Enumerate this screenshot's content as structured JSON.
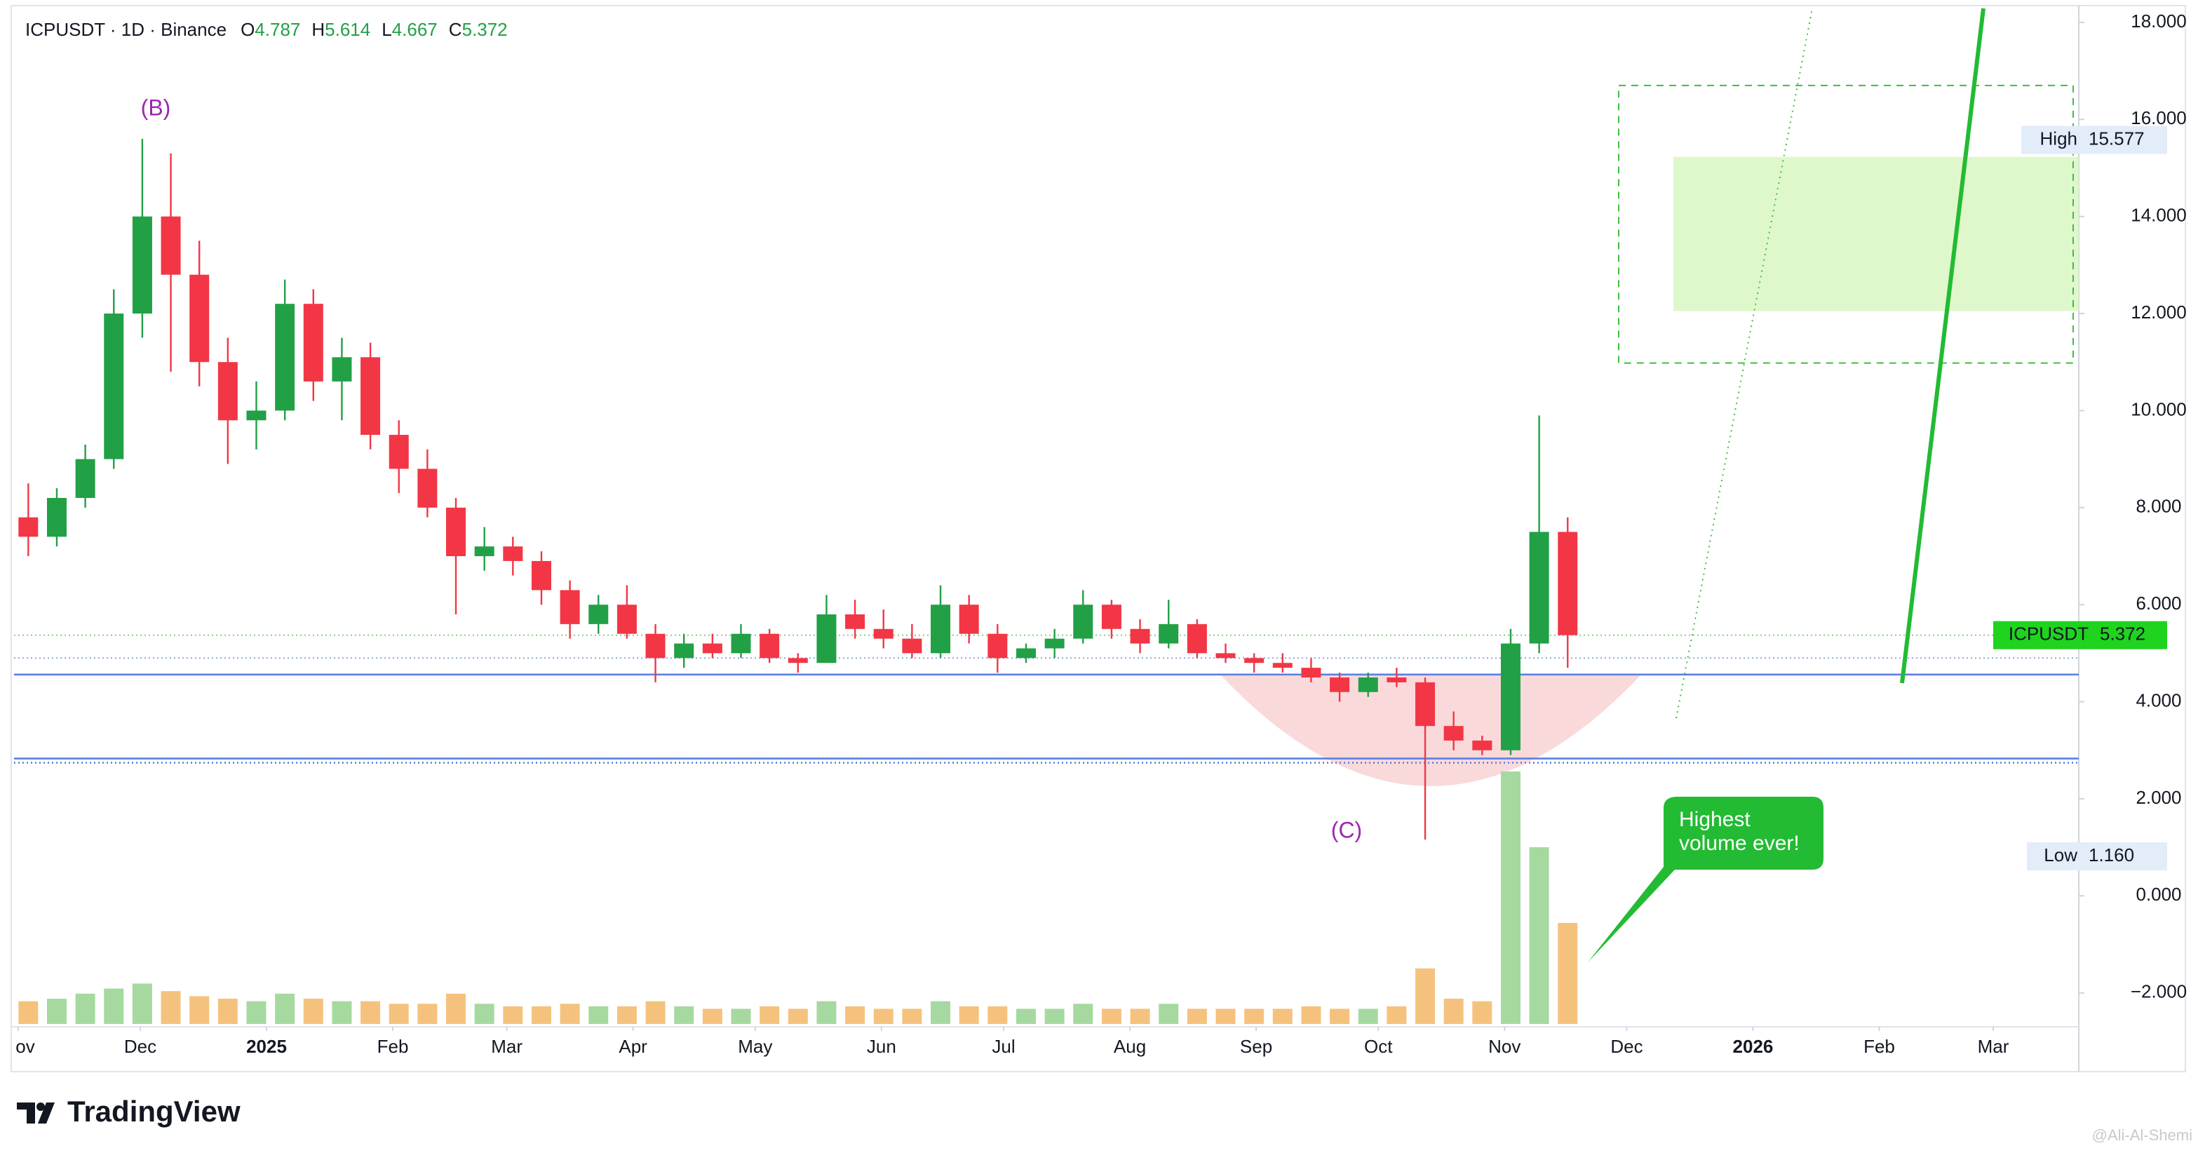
{
  "chart_data": {
    "type": "candlestick",
    "title": "ICPUSDT · 1D · Binance",
    "header": [
      {
        "key": "O",
        "value": 4.787
      },
      {
        "key": "H",
        "value": 5.614
      },
      {
        "key": "L",
        "value": 4.667
      },
      {
        "key": "C",
        "value": 5.372
      }
    ],
    "x": [
      0,
      7,
      14,
      21,
      28,
      35,
      42,
      49,
      56,
      63,
      70,
      77,
      84,
      91,
      98,
      105,
      112,
      119,
      126,
      133,
      140,
      147,
      154,
      161,
      168,
      175,
      182,
      189,
      196,
      203,
      210,
      217,
      224,
      231,
      238,
      245,
      252,
      259,
      266,
      273,
      280,
      287,
      294,
      301,
      308,
      315,
      322,
      329,
      336,
      343,
      350,
      357,
      364,
      371,
      378
    ],
    "open": [
      7.8,
      7.4,
      8.2,
      9.0,
      12.0,
      14.0,
      12.8,
      11.0,
      9.8,
      10.0,
      12.2,
      10.6,
      11.1,
      9.5,
      8.8,
      8.0,
      7.0,
      7.2,
      6.9,
      6.3,
      5.6,
      6.0,
      5.4,
      4.9,
      5.2,
      5.0,
      5.4,
      4.9,
      4.8,
      5.8,
      5.5,
      5.3,
      5.0,
      6.0,
      5.4,
      4.9,
      5.1,
      5.3,
      6.0,
      5.5,
      5.2,
      5.6,
      5.0,
      4.9,
      4.8,
      4.7,
      4.5,
      4.2,
      4.5,
      4.4,
      3.5,
      3.2,
      3.0,
      5.2,
      7.5
    ],
    "high": [
      8.5,
      8.4,
      9.3,
      12.5,
      15.6,
      15.3,
      13.5,
      11.5,
      10.6,
      12.7,
      12.5,
      11.5,
      11.4,
      9.8,
      9.2,
      8.2,
      7.6,
      7.4,
      7.1,
      6.5,
      6.2,
      6.4,
      5.6,
      5.4,
      5.4,
      5.6,
      5.5,
      5.0,
      6.2,
      6.1,
      5.9,
      5.6,
      6.4,
      6.2,
      5.6,
      5.2,
      5.5,
      6.3,
      6.1,
      5.7,
      6.1,
      5.7,
      5.2,
      5.0,
      5.0,
      4.9,
      4.6,
      4.6,
      4.7,
      4.5,
      3.8,
      3.3,
      5.5,
      9.9,
      7.8
    ],
    "low": [
      7.0,
      7.2,
      8.0,
      8.8,
      11.5,
      10.8,
      10.5,
      8.9,
      9.2,
      9.8,
      10.2,
      9.8,
      9.2,
      8.3,
      7.8,
      5.8,
      6.7,
      6.6,
      6.0,
      5.3,
      5.4,
      5.3,
      4.4,
      4.7,
      4.9,
      4.9,
      4.8,
      4.6,
      4.8,
      5.3,
      5.1,
      4.9,
      4.9,
      5.2,
      4.6,
      4.8,
      4.9,
      5.2,
      5.3,
      5.0,
      5.1,
      4.9,
      4.8,
      4.6,
      4.6,
      4.4,
      4.0,
      4.1,
      4.3,
      1.16,
      3.0,
      2.9,
      2.9,
      5.0,
      4.7
    ],
    "close": [
      7.4,
      8.2,
      9.0,
      12.0,
      14.0,
      12.8,
      11.0,
      9.8,
      10.0,
      12.2,
      10.6,
      11.1,
      9.5,
      8.8,
      8.0,
      7.0,
      7.2,
      6.9,
      6.3,
      5.6,
      6.0,
      5.4,
      4.9,
      5.2,
      5.0,
      5.4,
      4.9,
      4.8,
      5.8,
      5.5,
      5.3,
      5.0,
      6.0,
      5.4,
      4.9,
      5.1,
      5.3,
      6.0,
      5.5,
      5.2,
      5.6,
      5.0,
      4.9,
      4.8,
      4.7,
      4.5,
      4.2,
      4.5,
      4.4,
      3.5,
      3.2,
      3.0,
      5.2,
      7.5,
      5.372
    ],
    "volume": [
      9,
      10,
      12,
      14,
      16,
      13,
      11,
      10,
      9,
      12,
      10,
      9,
      9,
      8,
      8,
      12,
      8,
      7,
      7,
      8,
      7,
      7,
      9,
      7,
      6,
      6,
      7,
      6,
      9,
      7,
      6,
      6,
      9,
      7,
      7,
      6,
      6,
      8,
      6,
      6,
      8,
      6,
      6,
      6,
      6,
      7,
      6,
      6,
      7,
      22,
      10,
      9,
      100,
      70,
      40
    ],
    "volume_lim": [
      0,
      100
    ],
    "up_color": "#22a046",
    "down_color": "#f23645",
    "volume_up_color": "#a6d9a0",
    "volume_down_color": "#f5c27e",
    "xlim": [
      0,
      507
    ],
    "xticks": [
      {
        "value": 1,
        "label": "ov"
      },
      {
        "value": 31,
        "label": "Dec"
      },
      {
        "value": 62,
        "label": "2025"
      },
      {
        "value": 93,
        "label": "Feb"
      },
      {
        "value": 121,
        "label": "Mar"
      },
      {
        "value": 152,
        "label": "Apr"
      },
      {
        "value": 182,
        "label": "May"
      },
      {
        "value": 213,
        "label": "Jun"
      },
      {
        "value": 243,
        "label": "Jul"
      },
      {
        "value": 274,
        "label": "Aug"
      },
      {
        "value": 305,
        "label": "Sep"
      },
      {
        "value": 335,
        "label": "Oct"
      },
      {
        "value": 366,
        "label": "Nov"
      },
      {
        "value": 396,
        "label": "Dec"
      },
      {
        "value": 427,
        "label": "2026"
      },
      {
        "value": 458,
        "label": "Feb"
      },
      {
        "value": 486,
        "label": "Mar"
      }
    ],
    "ylim": [
      -2.64,
      18.23
    ],
    "yticks": [
      {
        "value": -2,
        "label": "−2.000"
      },
      {
        "value": 0,
        "label": "0.000"
      },
      {
        "value": 2,
        "label": "2.000"
      },
      {
        "value": 4,
        "label": "4.000"
      },
      {
        "value": 6,
        "label": "6.000"
      },
      {
        "value": 8,
        "label": "8.000"
      },
      {
        "value": 10,
        "label": "10.000"
      },
      {
        "value": 12,
        "label": "12.000"
      },
      {
        "value": 14,
        "label": "14.000"
      },
      {
        "value": 16,
        "label": "16.000"
      },
      {
        "value": 18,
        "label": "18.000"
      }
    ],
    "levels": [
      {
        "value": 4.56,
        "color": "#5b7fe0",
        "style": "solid"
      },
      {
        "value": 2.83,
        "color": "#5b7fe0",
        "style": "double"
      },
      {
        "value": 4.9,
        "color": "#8ea6e6",
        "style": "dotted"
      },
      {
        "value": 5.37,
        "color": "#7fd47f",
        "style": "dotted"
      }
    ],
    "target_box": [
      10.98,
      16.7
    ],
    "target_zone": [
      12.05,
      15.23
    ],
    "high_marker": {
      "label": "High",
      "value": 15.577
    },
    "low_marker": {
      "label": "Low",
      "price": {
        "value": 1.16,
        "label": "1.160"
      }
    },
    "last_price": {
      "symbol": "ICPUSDT",
      "value": 5.372
    },
    "wave_labels": [
      "(B)",
      "(C)"
    ],
    "callout": [
      "Highest",
      "volume ever!"
    ],
    "brand": "TradingView",
    "watermark": "@Ali-Al-Shemi"
  }
}
